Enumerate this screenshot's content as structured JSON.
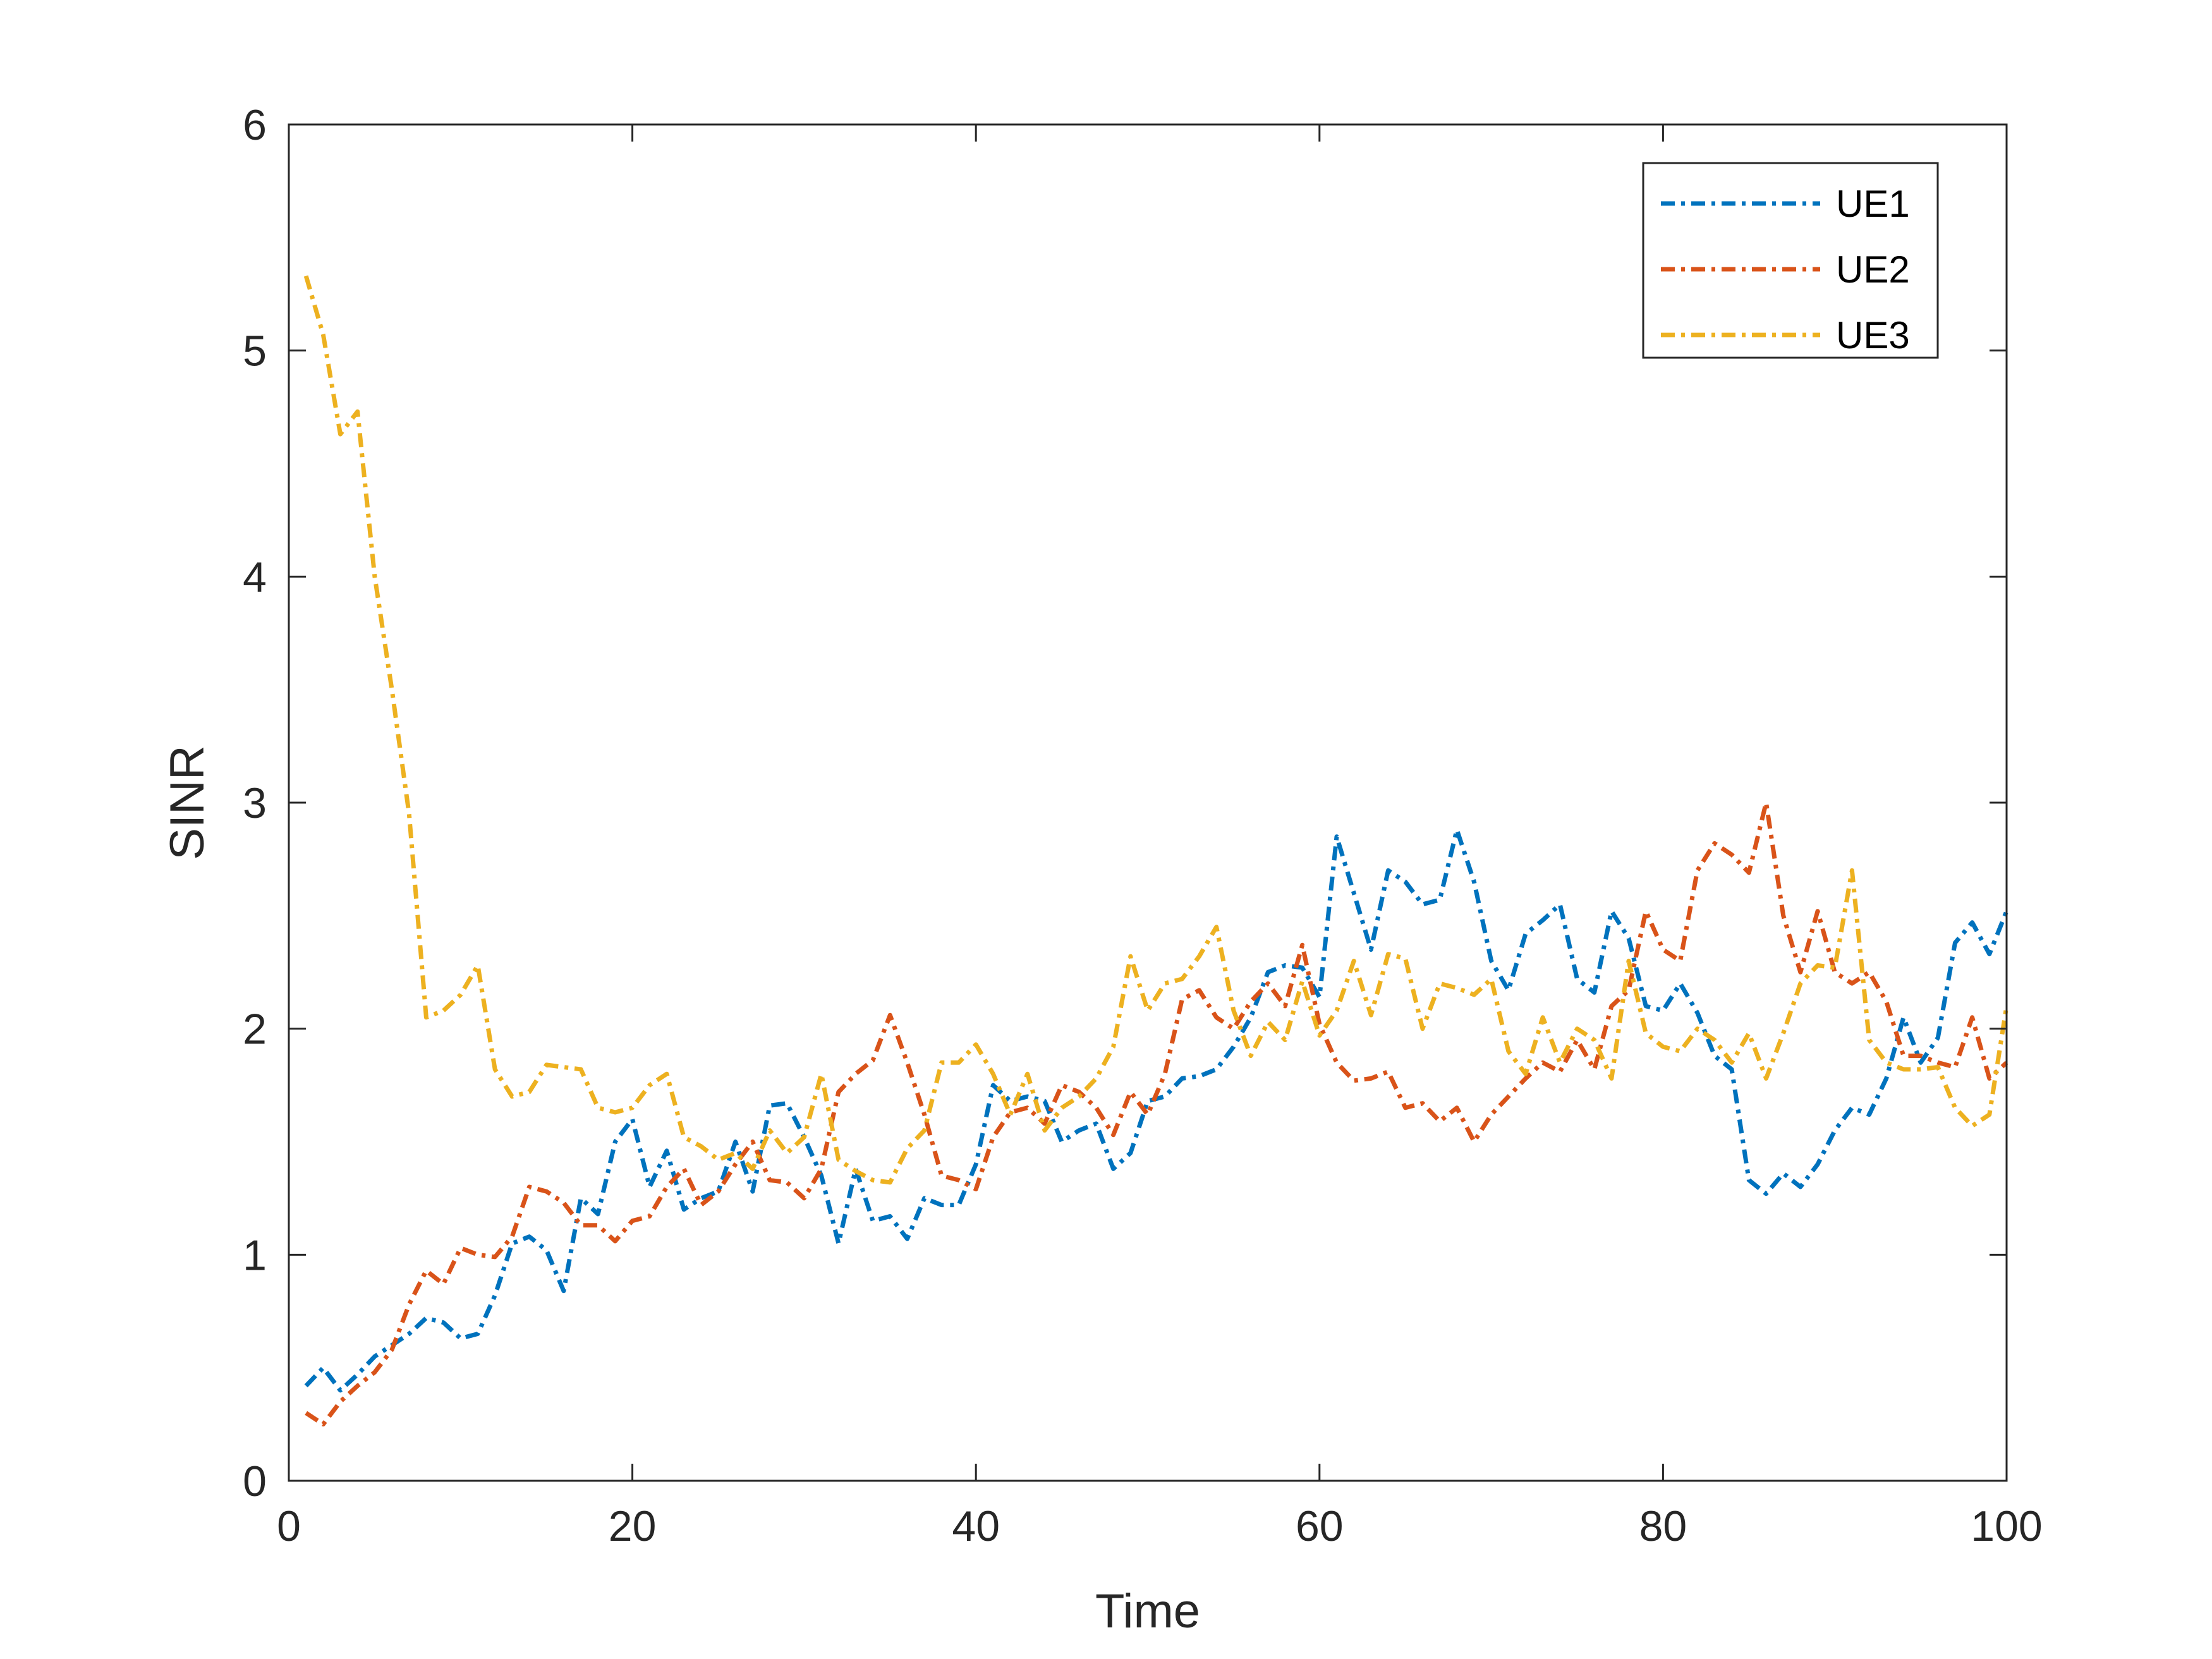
{
  "chart_data": {
    "type": "line",
    "xlabel": "Time",
    "ylabel": "SINR",
    "xlim": [
      0,
      100
    ],
    "ylim": [
      0,
      6
    ],
    "xticks": [
      0,
      20,
      40,
      60,
      80,
      100
    ],
    "yticks": [
      0,
      1,
      2,
      3,
      4,
      5,
      6
    ],
    "box": true,
    "grid": false,
    "legend_location": "top-right",
    "line_style": "dash-dot",
    "series": [
      {
        "name": "UE1",
        "color": "#0072BD",
        "x": [
          1,
          2,
          3,
          4,
          5,
          6,
          7,
          8,
          9,
          10,
          11,
          12,
          13,
          14,
          15,
          16,
          17,
          18,
          19,
          20,
          21,
          22,
          23,
          24,
          25,
          26,
          27,
          28,
          29,
          30,
          31,
          32,
          33,
          34,
          35,
          36,
          37,
          38,
          39,
          40,
          41,
          42,
          43,
          44,
          45,
          46,
          47,
          48,
          49,
          50,
          51,
          52,
          53,
          54,
          55,
          56,
          57,
          58,
          59,
          60,
          61,
          62,
          63,
          64,
          65,
          66,
          67,
          68,
          69,
          70,
          71,
          72,
          73,
          74,
          75,
          76,
          77,
          78,
          79,
          80,
          81,
          82,
          83,
          84,
          85,
          86,
          87,
          88,
          89,
          90,
          91,
          92,
          93,
          94,
          95,
          96,
          97,
          98,
          99,
          100
        ],
        "values": [
          0.42,
          0.5,
          0.4,
          0.47,
          0.55,
          0.6,
          0.65,
          0.72,
          0.7,
          0.63,
          0.65,
          0.82,
          1.05,
          1.08,
          1.02,
          0.84,
          1.25,
          1.18,
          1.5,
          1.6,
          1.3,
          1.46,
          1.2,
          1.25,
          1.28,
          1.5,
          1.28,
          1.66,
          1.67,
          1.52,
          1.35,
          1.05,
          1.38,
          1.15,
          1.17,
          1.07,
          1.25,
          1.22,
          1.22,
          1.4,
          1.75,
          1.68,
          1.7,
          1.68,
          1.5,
          1.55,
          1.58,
          1.38,
          1.45,
          1.68,
          1.7,
          1.78,
          1.79,
          1.82,
          1.92,
          2.05,
          2.25,
          2.28,
          2.27,
          2.14,
          2.85,
          2.6,
          2.35,
          2.7,
          2.65,
          2.55,
          2.57,
          2.88,
          2.65,
          2.3,
          2.17,
          2.42,
          2.48,
          2.55,
          2.22,
          2.16,
          2.52,
          2.4,
          2.1,
          2.08,
          2.2,
          2.07,
          1.88,
          1.82,
          1.33,
          1.27,
          1.36,
          1.3,
          1.4,
          1.55,
          1.65,
          1.62,
          1.78,
          2.05,
          1.85,
          1.96,
          2.38,
          2.47,
          2.33,
          2.52
        ]
      },
      {
        "name": "UE2",
        "color": "#D95319",
        "x": [
          1,
          2,
          3,
          4,
          5,
          6,
          7,
          8,
          9,
          10,
          11,
          12,
          13,
          14,
          15,
          16,
          17,
          18,
          19,
          20,
          21,
          22,
          23,
          24,
          25,
          26,
          27,
          28,
          29,
          30,
          31,
          32,
          33,
          34,
          35,
          36,
          37,
          38,
          39,
          40,
          41,
          42,
          43,
          44,
          45,
          46,
          47,
          48,
          49,
          50,
          51,
          52,
          53,
          54,
          55,
          56,
          57,
          58,
          59,
          60,
          61,
          62,
          63,
          64,
          65,
          66,
          67,
          68,
          69,
          70,
          71,
          72,
          73,
          74,
          75,
          76,
          77,
          78,
          79,
          80,
          81,
          82,
          83,
          84,
          85,
          86,
          87,
          88,
          89,
          90,
          91,
          92,
          93,
          94,
          95,
          96,
          97,
          98,
          99,
          100
        ],
        "values": [
          0.3,
          0.25,
          0.35,
          0.42,
          0.48,
          0.58,
          0.78,
          0.93,
          0.87,
          1.03,
          1.0,
          0.99,
          1.08,
          1.3,
          1.28,
          1.23,
          1.13,
          1.13,
          1.06,
          1.15,
          1.17,
          1.3,
          1.38,
          1.22,
          1.28,
          1.4,
          1.5,
          1.33,
          1.32,
          1.25,
          1.38,
          1.72,
          1.8,
          1.86,
          2.06,
          1.85,
          1.62,
          1.35,
          1.33,
          1.29,
          1.52,
          1.63,
          1.65,
          1.58,
          1.75,
          1.72,
          1.65,
          1.53,
          1.72,
          1.62,
          1.8,
          2.13,
          2.17,
          2.05,
          2.0,
          2.12,
          2.2,
          2.1,
          2.37,
          2.02,
          1.85,
          1.77,
          1.78,
          1.81,
          1.65,
          1.67,
          1.59,
          1.65,
          1.5,
          1.62,
          1.7,
          1.78,
          1.85,
          1.81,
          1.95,
          1.82,
          2.1,
          2.17,
          2.52,
          2.35,
          2.3,
          2.7,
          2.82,
          2.77,
          2.69,
          3.0,
          2.5,
          2.25,
          2.52,
          2.25,
          2.2,
          2.25,
          2.12,
          1.88,
          1.88,
          1.85,
          1.83,
          2.05,
          1.78,
          1.85
        ]
      },
      {
        "name": "UE3",
        "color": "#EDB120",
        "x": [
          1,
          2,
          3,
          4,
          5,
          6,
          7,
          8,
          9,
          10,
          11,
          12,
          13,
          14,
          15,
          16,
          17,
          18,
          19,
          20,
          21,
          22,
          23,
          24,
          25,
          26,
          27,
          28,
          29,
          30,
          31,
          32,
          33,
          34,
          35,
          36,
          37,
          38,
          39,
          40,
          41,
          42,
          43,
          44,
          45,
          46,
          47,
          48,
          49,
          50,
          51,
          52,
          53,
          54,
          55,
          56,
          57,
          58,
          59,
          60,
          61,
          62,
          63,
          64,
          65,
          66,
          67,
          68,
          69,
          70,
          71,
          72,
          73,
          74,
          75,
          76,
          77,
          78,
          79,
          80,
          81,
          82,
          83,
          84,
          85,
          86,
          87,
          88,
          89,
          90,
          91,
          92,
          93,
          94,
          95,
          96,
          97,
          98,
          99,
          100
        ],
        "values": [
          5.33,
          5.07,
          4.63,
          4.73,
          4.0,
          3.5,
          2.95,
          2.05,
          2.08,
          2.15,
          2.28,
          1.82,
          1.7,
          1.72,
          1.84,
          1.83,
          1.82,
          1.65,
          1.63,
          1.65,
          1.75,
          1.8,
          1.52,
          1.48,
          1.42,
          1.45,
          1.38,
          1.55,
          1.45,
          1.52,
          1.8,
          1.42,
          1.37,
          1.33,
          1.32,
          1.47,
          1.55,
          1.85,
          1.85,
          1.93,
          1.8,
          1.62,
          1.8,
          1.55,
          1.65,
          1.7,
          1.78,
          1.92,
          2.32,
          2.08,
          2.2,
          2.22,
          2.32,
          2.45,
          2.08,
          1.88,
          2.03,
          1.95,
          2.21,
          1.97,
          2.08,
          2.3,
          2.06,
          2.33,
          2.31,
          2.0,
          2.2,
          2.18,
          2.15,
          2.22,
          1.9,
          1.8,
          2.05,
          1.85,
          2.0,
          1.95,
          1.78,
          2.3,
          1.98,
          1.92,
          1.9,
          2.0,
          1.95,
          1.85,
          1.98,
          1.78,
          1.98,
          2.2,
          2.28,
          2.27,
          2.7,
          1.95,
          1.85,
          1.82,
          1.82,
          1.83,
          1.65,
          1.57,
          1.62,
          2.1
        ]
      }
    ]
  }
}
